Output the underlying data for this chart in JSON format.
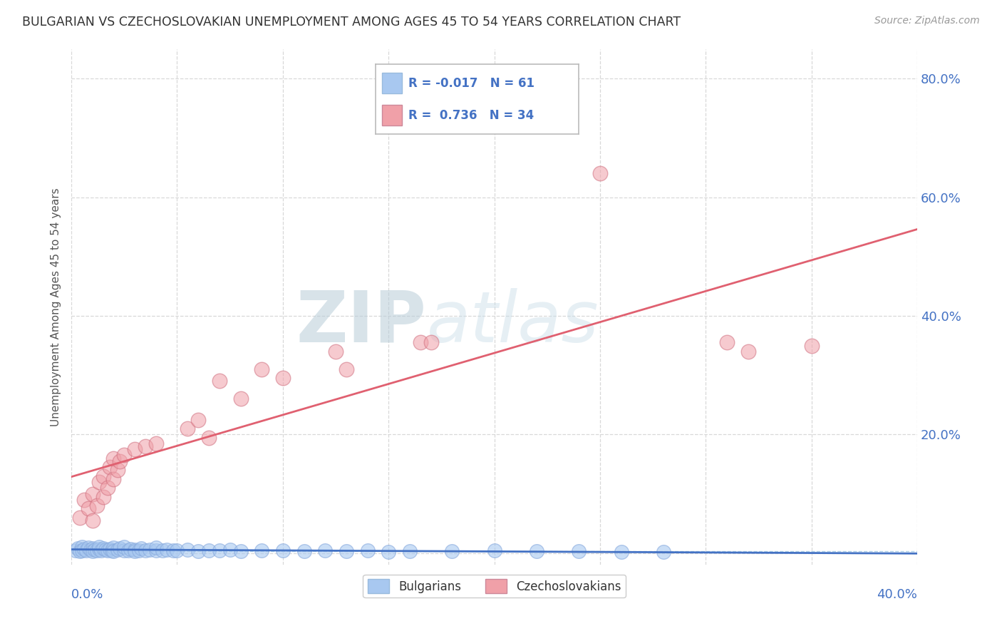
{
  "title": "BULGARIAN VS CZECHOSLOVAKIAN UNEMPLOYMENT AMONG AGES 45 TO 54 YEARS CORRELATION CHART",
  "source": "Source: ZipAtlas.com",
  "ylabel": "Unemployment Among Ages 45 to 54 years",
  "xlim": [
    0.0,
    0.4
  ],
  "ylim": [
    -0.02,
    0.85
  ],
  "yticks": [
    0.0,
    0.2,
    0.4,
    0.6,
    0.8
  ],
  "ytick_labels": [
    "",
    "20.0%",
    "40.0%",
    "60.0%",
    "80.0%"
  ],
  "xticks": [
    0.0,
    0.05,
    0.1,
    0.15,
    0.2,
    0.25,
    0.3,
    0.35,
    0.4
  ],
  "bg_color": "#ffffff",
  "grid_color": "#d8d8d8",
  "blue_color": "#a8c8f0",
  "pink_color": "#f0a0a8",
  "blue_line_color": "#4472c4",
  "pink_line_color": "#e06070",
  "blue_R": -0.017,
  "blue_N": 61,
  "pink_R": 0.736,
  "pink_N": 34,
  "watermark_zip": "ZIP",
  "watermark_atlas": "atlas",
  "watermark_color": "#ccdded",
  "legend_items": [
    "Bulgarians",
    "Czechoslovakians"
  ],
  "legend_text_color": "#4472c4",
  "blue_scatter": [
    [
      0.002,
      0.005
    ],
    [
      0.003,
      0.008
    ],
    [
      0.004,
      0.003
    ],
    [
      0.005,
      0.01
    ],
    [
      0.005,
      0.004
    ],
    [
      0.006,
      0.007
    ],
    [
      0.007,
      0.005
    ],
    [
      0.008,
      0.009
    ],
    [
      0.009,
      0.006
    ],
    [
      0.01,
      0.008
    ],
    [
      0.01,
      0.003
    ],
    [
      0.011,
      0.006
    ],
    [
      0.012,
      0.004
    ],
    [
      0.013,
      0.007
    ],
    [
      0.013,
      0.01
    ],
    [
      0.014,
      0.005
    ],
    [
      0.015,
      0.008
    ],
    [
      0.016,
      0.006
    ],
    [
      0.017,
      0.004
    ],
    [
      0.018,
      0.007
    ],
    [
      0.019,
      0.005
    ],
    [
      0.02,
      0.009
    ],
    [
      0.02,
      0.003
    ],
    [
      0.022,
      0.006
    ],
    [
      0.023,
      0.008
    ],
    [
      0.025,
      0.005
    ],
    [
      0.025,
      0.01
    ],
    [
      0.027,
      0.004
    ],
    [
      0.028,
      0.007
    ],
    [
      0.03,
      0.006
    ],
    [
      0.03,
      0.003
    ],
    [
      0.032,
      0.005
    ],
    [
      0.033,
      0.008
    ],
    [
      0.035,
      0.004
    ],
    [
      0.037,
      0.006
    ],
    [
      0.04,
      0.005
    ],
    [
      0.04,
      0.009
    ],
    [
      0.043,
      0.004
    ],
    [
      0.045,
      0.006
    ],
    [
      0.048,
      0.005
    ],
    [
      0.05,
      0.004
    ],
    [
      0.055,
      0.006
    ],
    [
      0.06,
      0.003
    ],
    [
      0.065,
      0.005
    ],
    [
      0.07,
      0.004
    ],
    [
      0.075,
      0.006
    ],
    [
      0.08,
      0.003
    ],
    [
      0.09,
      0.004
    ],
    [
      0.1,
      0.005
    ],
    [
      0.11,
      0.003
    ],
    [
      0.12,
      0.004
    ],
    [
      0.13,
      0.003
    ],
    [
      0.14,
      0.005
    ],
    [
      0.15,
      0.002
    ],
    [
      0.16,
      0.003
    ],
    [
      0.18,
      0.003
    ],
    [
      0.2,
      0.004
    ],
    [
      0.22,
      0.003
    ],
    [
      0.24,
      0.003
    ],
    [
      0.26,
      0.002
    ],
    [
      0.28,
      0.002
    ]
  ],
  "pink_scatter": [
    [
      0.004,
      0.06
    ],
    [
      0.006,
      0.09
    ],
    [
      0.008,
      0.075
    ],
    [
      0.01,
      0.055
    ],
    [
      0.01,
      0.1
    ],
    [
      0.012,
      0.08
    ],
    [
      0.013,
      0.12
    ],
    [
      0.015,
      0.095
    ],
    [
      0.015,
      0.13
    ],
    [
      0.017,
      0.11
    ],
    [
      0.018,
      0.145
    ],
    [
      0.02,
      0.125
    ],
    [
      0.02,
      0.16
    ],
    [
      0.022,
      0.14
    ],
    [
      0.023,
      0.155
    ],
    [
      0.025,
      0.165
    ],
    [
      0.03,
      0.175
    ],
    [
      0.035,
      0.18
    ],
    [
      0.04,
      0.185
    ],
    [
      0.055,
      0.21
    ],
    [
      0.06,
      0.225
    ],
    [
      0.065,
      0.195
    ],
    [
      0.07,
      0.29
    ],
    [
      0.08,
      0.26
    ],
    [
      0.09,
      0.31
    ],
    [
      0.1,
      0.295
    ],
    [
      0.125,
      0.34
    ],
    [
      0.13,
      0.31
    ],
    [
      0.165,
      0.355
    ],
    [
      0.17,
      0.355
    ],
    [
      0.25,
      0.64
    ],
    [
      0.31,
      0.355
    ],
    [
      0.32,
      0.34
    ],
    [
      0.35,
      0.35
    ]
  ]
}
